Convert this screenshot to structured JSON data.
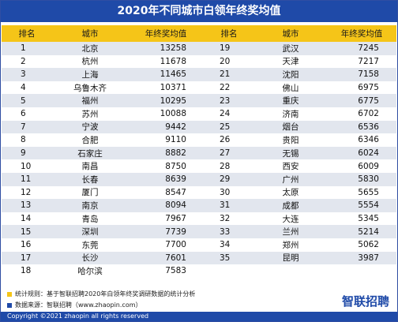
{
  "title": "2020年不同城市白领年终奖均值",
  "headers": [
    "排名",
    "城市",
    "年终奖均值",
    "排名",
    "城市",
    "年终奖均值"
  ],
  "colors": {
    "title_bg": "#1f4aa8",
    "header_bg": "#f5c518",
    "row_alt": "#e2e6ee",
    "note1_square": "#f5c518",
    "note2_square": "#1f4aa8"
  },
  "chart_data": {
    "type": "table",
    "title": "2020年不同城市白领年终奖均值",
    "columns": [
      "排名",
      "城市",
      "年终奖均值"
    ],
    "rows": [
      [
        1,
        "北京",
        13258
      ],
      [
        2,
        "杭州",
        11678
      ],
      [
        3,
        "上海",
        11465
      ],
      [
        4,
        "乌鲁木齐",
        10371
      ],
      [
        5,
        "福州",
        10295
      ],
      [
        6,
        "苏州",
        10088
      ],
      [
        7,
        "宁波",
        9442
      ],
      [
        8,
        "合肥",
        9110
      ],
      [
        9,
        "石家庄",
        8882
      ],
      [
        10,
        "南昌",
        8750
      ],
      [
        11,
        "长春",
        8639
      ],
      [
        12,
        "厦门",
        8547
      ],
      [
        13,
        "南京",
        8094
      ],
      [
        14,
        "青岛",
        7967
      ],
      [
        15,
        "深圳",
        7739
      ],
      [
        16,
        "东莞",
        7700
      ],
      [
        17,
        "长沙",
        7601
      ],
      [
        18,
        "哈尔滨",
        7583
      ],
      [
        19,
        "武汉",
        7245
      ],
      [
        20,
        "天津",
        7217
      ],
      [
        21,
        "沈阳",
        7158
      ],
      [
        22,
        "佛山",
        6975
      ],
      [
        23,
        "重庆",
        6775
      ],
      [
        24,
        "济南",
        6702
      ],
      [
        25,
        "烟台",
        6536
      ],
      [
        26,
        "贵阳",
        6346
      ],
      [
        27,
        "无锡",
        6024
      ],
      [
        28,
        "西安",
        6009
      ],
      [
        29,
        "广州",
        5830
      ],
      [
        30,
        "太原",
        5655
      ],
      [
        31,
        "成都",
        5554
      ],
      [
        32,
        "大连",
        5345
      ],
      [
        33,
        "兰州",
        5214
      ],
      [
        34,
        "郑州",
        5062
      ],
      [
        35,
        "昆明",
        3987
      ]
    ]
  },
  "notes": {
    "note1": "统计规则：基于智联招聘2020年白领年终奖调研数据的统计分析",
    "note2": "数据来源：智联招聘（www.zhaopin.com）"
  },
  "logo_text": "智联招聘",
  "copyright": "Copyright ©2021 zhaopin all rights reserved"
}
